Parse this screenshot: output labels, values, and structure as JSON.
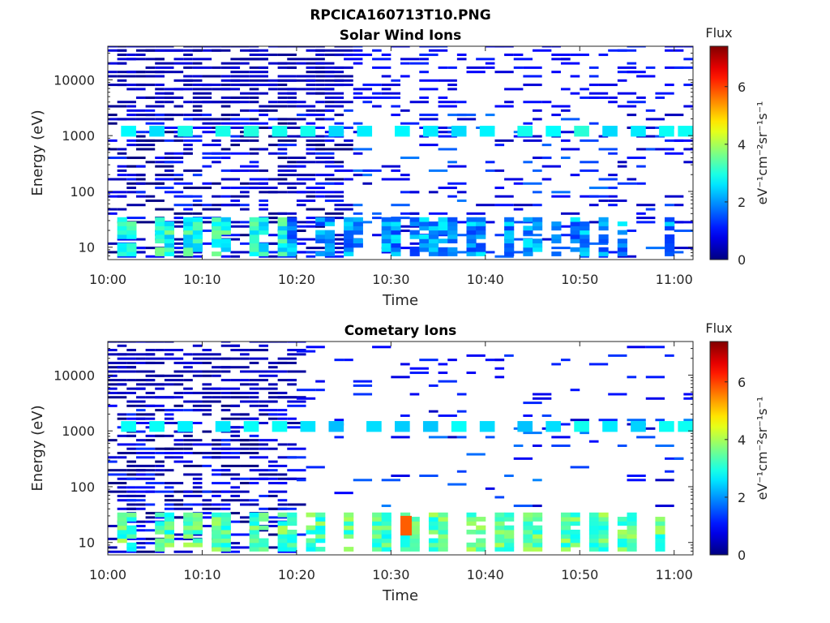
{
  "figure": {
    "title": "RPCICA160713T10.PNG"
  },
  "chart_data": [
    {
      "type": "heatmap",
      "title": "Solar Wind Ions",
      "xlabel": "Time",
      "ylabel": "Energy (eV)",
      "x_range": [
        "10:00",
        "11:02"
      ],
      "x_ticks": [
        "10:00",
        "10:10",
        "10:20",
        "10:30",
        "10:40",
        "10:50",
        "11:00"
      ],
      "y_scale": "log",
      "y_range": [
        6,
        40000
      ],
      "y_ticks": [
        "10",
        "100",
        "1000",
        "10000"
      ],
      "colorbar": {
        "label": "Flux",
        "unit": "eV⁻¹cm⁻²sr⁻¹s⁻¹",
        "range": [
          0,
          7.4
        ],
        "ticks": [
          "0",
          "2",
          "4",
          "6"
        ],
        "colormap": "jet"
      },
      "bands": [
        {
          "energy_range": [
            6,
            40000
          ],
          "time_range": [
            "10:00",
            "10:25"
          ],
          "flux": 0.3,
          "coverage": "dense"
        },
        {
          "energy_range": [
            6,
            40000
          ],
          "time_range": [
            "10:25",
            "11:02"
          ],
          "flux": 0.8,
          "coverage": "sparse"
        },
        {
          "energy": 1200,
          "times": [
            "10:02",
            "10:05",
            "10:08",
            "10:12",
            "10:15",
            "10:18",
            "10:21",
            "10:24",
            "10:27",
            "10:31",
            "10:34",
            "10:37",
            "10:40",
            "10:44",
            "10:47",
            "10:50",
            "10:53",
            "10:56",
            "10:59",
            "11:01"
          ],
          "flux": 2.8
        },
        {
          "energy_range": [
            7,
            30
          ],
          "time_range": [
            "10:01",
            "10:19"
          ],
          "flux": 3.0,
          "pattern": "periodic"
        },
        {
          "energy_range": [
            7,
            30
          ],
          "time_range": [
            "10:19",
            "11:01"
          ],
          "flux": 2.0,
          "pattern": "scattered"
        }
      ]
    },
    {
      "type": "heatmap",
      "title": "Cometary Ions",
      "xlabel": "Time",
      "ylabel": "Energy (eV)",
      "x_range": [
        "10:00",
        "11:02"
      ],
      "x_ticks": [
        "10:00",
        "10:10",
        "10:20",
        "10:30",
        "10:40",
        "10:50",
        "11:00"
      ],
      "y_scale": "log",
      "y_range": [
        6,
        40000
      ],
      "y_ticks": [
        "10",
        "100",
        "1000",
        "10000"
      ],
      "colorbar": {
        "label": "Flux",
        "unit": "eV⁻¹cm⁻²sr⁻¹s⁻¹",
        "range": [
          0,
          7.4
        ],
        "ticks": [
          "0",
          "2",
          "4",
          "6"
        ],
        "colormap": "jet"
      },
      "bands": [
        {
          "energy_range": [
            6,
            40000
          ],
          "time_range": [
            "10:00",
            "10:20"
          ],
          "flux": 0.3,
          "coverage": "dense"
        },
        {
          "energy_range": [
            40,
            40000
          ],
          "time_range": [
            "10:20",
            "11:02"
          ],
          "flux": 0.9,
          "coverage": "very sparse"
        },
        {
          "energy": 1200,
          "times": [
            "10:02",
            "10:05",
            "10:08",
            "10:12",
            "10:15",
            "10:18",
            "10:21",
            "10:24",
            "10:28",
            "10:31",
            "10:34",
            "10:37",
            "10:40",
            "10:44",
            "10:47",
            "10:50",
            "10:53",
            "10:56",
            "10:59",
            "11:01"
          ],
          "flux": 2.6
        },
        {
          "energy_range": [
            7,
            30
          ],
          "time_range": [
            "10:01",
            "11:01"
          ],
          "flux": 3.4,
          "pattern": "periodic"
        },
        {
          "energy": 20,
          "time": "10:31",
          "flux": 5.8
        }
      ]
    }
  ]
}
